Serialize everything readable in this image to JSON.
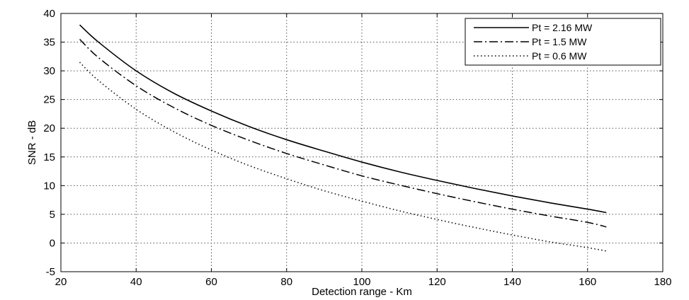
{
  "chart_data": {
    "type": "line",
    "title": "",
    "xlabel": "Detection range - Km",
    "ylabel": "SNR - dB",
    "xlim": [
      20,
      180
    ],
    "ylim": [
      -5,
      40
    ],
    "xticks": [
      20,
      40,
      60,
      80,
      100,
      120,
      140,
      160,
      180
    ],
    "yticks": [
      -5,
      0,
      5,
      10,
      15,
      20,
      25,
      30,
      35,
      40
    ],
    "grid": true,
    "legend_position": "top-right",
    "x": [
      25,
      30,
      40,
      50,
      60,
      70,
      80,
      90,
      100,
      110,
      120,
      130,
      140,
      150,
      160,
      165
    ],
    "series": [
      {
        "name": "Pt = 2.16 MW",
        "style": "solid",
        "color": "#000000",
        "values": [
          38.0,
          35.0,
          30.0,
          26.1,
          23.0,
          20.3,
          18.0,
          16.0,
          14.1,
          12.4,
          10.9,
          9.5,
          8.2,
          7.0,
          5.9,
          5.3
        ]
      },
      {
        "name": "Pt = 1.5 MW",
        "style": "dashdot",
        "color": "#000000",
        "values": [
          35.5,
          32.3,
          27.4,
          23.6,
          20.5,
          17.9,
          15.6,
          13.6,
          11.7,
          10.1,
          8.6,
          7.2,
          5.9,
          4.7,
          3.6,
          2.8
        ]
      },
      {
        "name": "Pt = 0.6 MW",
        "style": "dotted",
        "color": "#000000",
        "values": [
          31.5,
          28.3,
          23.3,
          19.4,
          16.2,
          13.5,
          11.2,
          9.1,
          7.3,
          5.6,
          4.1,
          2.7,
          1.4,
          0.2,
          -0.8,
          -1.4
        ]
      }
    ]
  }
}
